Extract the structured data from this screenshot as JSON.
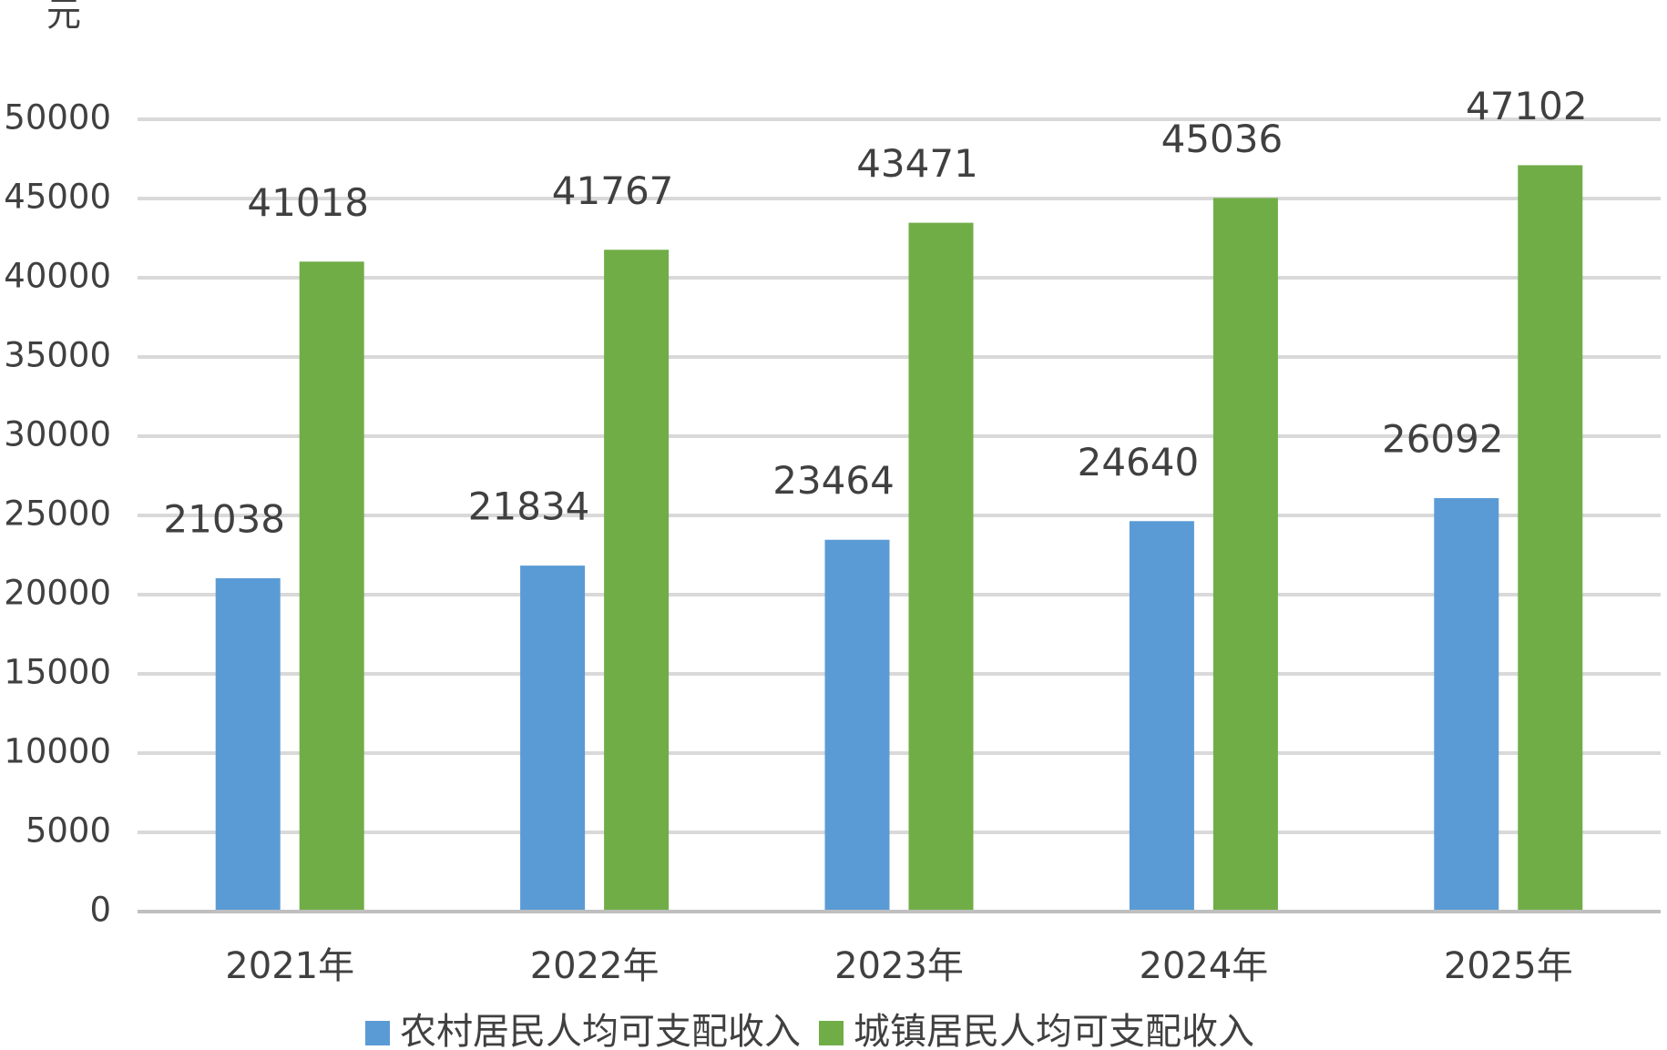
{
  "chart_data": {
    "type": "bar",
    "y_label": "元",
    "categories": [
      "2021年",
      "2022年",
      "2023年",
      "2024年",
      "2025年"
    ],
    "series": [
      {
        "name": "农村居民人均可支配收入",
        "color": "#5b9bd5",
        "values": [
          21038,
          21834,
          23464,
          24640,
          26092
        ]
      },
      {
        "name": "城镇居民人均可支配收入",
        "color": "#70ad47",
        "values": [
          41018,
          41767,
          43471,
          45036,
          47102
        ]
      }
    ],
    "ylim": [
      0,
      50000
    ],
    "yticks": [
      0,
      5000,
      10000,
      15000,
      20000,
      25000,
      30000,
      35000,
      40000,
      45000,
      50000
    ],
    "grid": true,
    "legend": "bottom"
  }
}
